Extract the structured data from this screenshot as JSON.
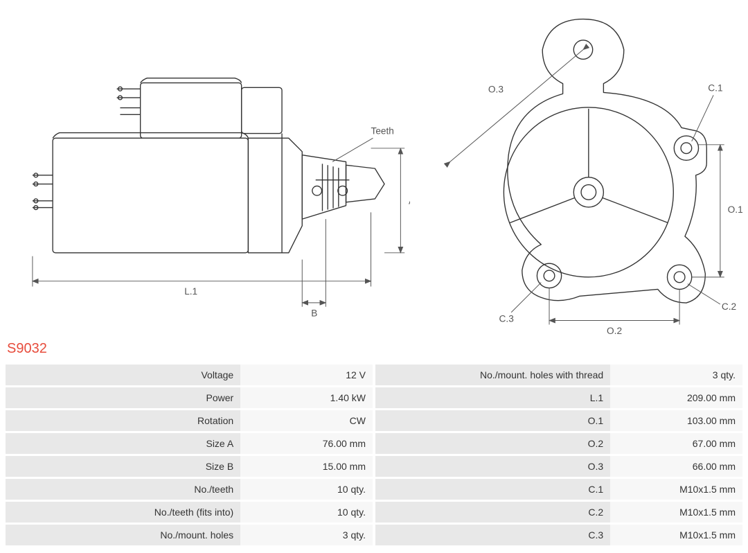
{
  "part_number": "S9032",
  "colors": {
    "stroke": "#333333",
    "dim": "#555555",
    "title": "#e74c3c",
    "row_label_bg": "#e8e8e8",
    "row_value_bg": "#f7f7f7",
    "body_bg": "#ffffff"
  },
  "diagram_labels": {
    "teeth": "Teeth",
    "A": "A",
    "B": "B",
    "L1": "L.1",
    "O1": "O.1",
    "O2": "O.2",
    "O3": "O.3",
    "C1": "C.1",
    "C2": "C.2",
    "C3": "C.3"
  },
  "specs_left": [
    {
      "label": "Voltage",
      "value": "12 V"
    },
    {
      "label": "Power",
      "value": "1.40 kW"
    },
    {
      "label": "Rotation",
      "value": "CW"
    },
    {
      "label": "Size A",
      "value": "76.00 mm"
    },
    {
      "label": "Size B",
      "value": "15.00 mm"
    },
    {
      "label": "No./teeth",
      "value": "10 qty."
    },
    {
      "label": "No./teeth (fits into)",
      "value": "10 qty."
    },
    {
      "label": "No./mount. holes",
      "value": "3 qty."
    }
  ],
  "specs_right": [
    {
      "label": "No./mount. holes with thread",
      "value": "3 qty."
    },
    {
      "label": "L.1",
      "value": "209.00 mm"
    },
    {
      "label": "O.1",
      "value": "103.00 mm"
    },
    {
      "label": "O.2",
      "value": "67.00 mm"
    },
    {
      "label": "O.3",
      "value": "66.00 mm"
    },
    {
      "label": "C.1",
      "value": "M10x1.5 mm"
    },
    {
      "label": "C.2",
      "value": "M10x1.5 mm"
    },
    {
      "label": "C.3",
      "value": "M10x1.5 mm"
    }
  ]
}
